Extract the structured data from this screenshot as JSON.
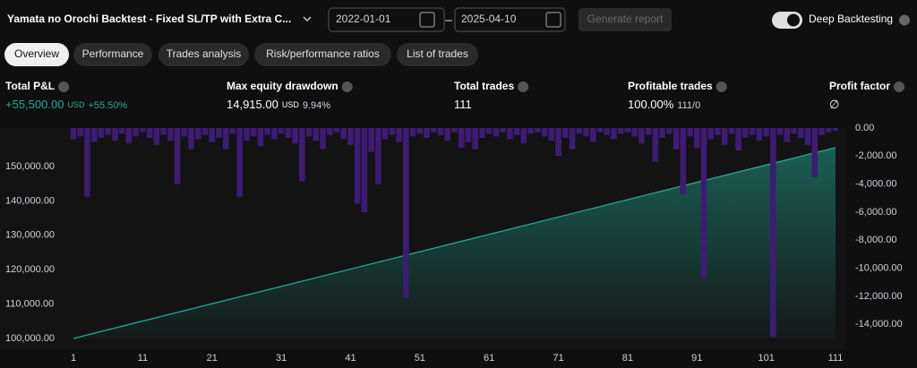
{
  "header": {
    "title": "Yamata no Orochi Backtest - Fixed SL/TP with Extra C...",
    "date_from": "2022-01-01",
    "date_to": "2025-04-10",
    "generate": "Generate report",
    "deep": "Deep Backtesting"
  },
  "tabs": [
    "Overview",
    "Performance",
    "Trades analysis",
    "Risk/performance ratios",
    "List of trades"
  ],
  "stats": [
    {
      "label": "Total P&L",
      "value": "+55,500.00",
      "unit": "USD",
      "extra": "+55.50%"
    },
    {
      "label": "Max equity drawdown",
      "value": "14,915.00",
      "unit": "USD",
      "extra": "9.94%"
    },
    {
      "label": "Total trades",
      "value": "111"
    },
    {
      "label": "Profitable trades",
      "value": "100.00%",
      "extra": "111/0"
    },
    {
      "label": "Profit factor",
      "value": "∅"
    }
  ],
  "chart_data": {
    "type": "line",
    "xlim": [
      1,
      111
    ],
    "xticks": [
      1,
      11,
      21,
      31,
      41,
      51,
      61,
      71,
      81,
      91,
      101,
      111
    ],
    "ylim": [
      100000,
      161200
    ],
    "yticks": [
      {
        "value": 100000,
        "label": "100,000.00"
      },
      {
        "value": 110000,
        "label": "110,000.00"
      },
      {
        "value": 120000,
        "label": "120,000.00"
      },
      {
        "value": 130000,
        "label": "130,000.00"
      },
      {
        "value": 140000,
        "label": "140,000.00"
      },
      {
        "value": 150000,
        "label": "150,000.00"
      }
    ],
    "y2lim": [
      -15000,
      0
    ],
    "y2ticks": [
      {
        "value": 0,
        "label": "0.00"
      },
      {
        "value": -2000,
        "label": "-2,000.00"
      },
      {
        "value": -4000,
        "label": "-4,000.00"
      },
      {
        "value": -6000,
        "label": "-6,000.00"
      },
      {
        "value": -8000,
        "label": "-8,000.00"
      },
      {
        "value": -10000,
        "label": "-10,000.00"
      },
      {
        "value": -12000,
        "label": "-12,000.00"
      },
      {
        "value": -14000,
        "label": "-14,000.00"
      }
    ],
    "series": [
      {
        "type": "line",
        "color": "#22ab94",
        "x": [
          1,
          111
        ],
        "values": [
          100000,
          155500
        ]
      },
      {
        "type": "bar",
        "axis": "y2",
        "color": "#3d1c73",
        "x": [
          1,
          2,
          3,
          4,
          5,
          6,
          7,
          8,
          9,
          10,
          11,
          12,
          13,
          14,
          15,
          16,
          17,
          18,
          19,
          20,
          21,
          22,
          23,
          24,
          25,
          26,
          27,
          28,
          29,
          30,
          31,
          32,
          33,
          34,
          35,
          36,
          37,
          38,
          39,
          40,
          41,
          42,
          43,
          44,
          45,
          46,
          47,
          48,
          49,
          50,
          51,
          52,
          53,
          54,
          55,
          56,
          57,
          58,
          59,
          60,
          61,
          62,
          63,
          64,
          65,
          66,
          67,
          68,
          69,
          70,
          71,
          72,
          73,
          74,
          75,
          76,
          77,
          78,
          79,
          80,
          81,
          82,
          83,
          84,
          85,
          86,
          87,
          88,
          89,
          90,
          91,
          92,
          93,
          94,
          95,
          96,
          97,
          98,
          99,
          100,
          101,
          102,
          103,
          104,
          105,
          106,
          107,
          108,
          109,
          110,
          111
        ],
        "values": [
          -800,
          -600,
          -4900,
          -1000,
          -700,
          -500,
          -900,
          -400,
          -1100,
          -600,
          -300,
          -700,
          -1200,
          -500,
          -900,
          -4000,
          -600,
          -1500,
          -800,
          -500,
          -1000,
          -700,
          -1500,
          -400,
          -4900,
          -900,
          -600,
          -1300,
          -500,
          -800,
          -400,
          -700,
          -1100,
          -3800,
          -600,
          -900,
          -1500,
          -500,
          -300,
          -800,
          -1200,
          -5400,
          -6000,
          -1700,
          -4000,
          -800,
          -500,
          -1000,
          -12100,
          -600,
          -400,
          -700,
          -300,
          -500,
          -900,
          -300,
          -1400,
          -1000,
          -1500,
          -700,
          -400,
          -600,
          -300,
          -800,
          -500,
          -1100,
          -400,
          -300,
          -600,
          -900,
          -2000,
          -700,
          -1500,
          -400,
          -600,
          -1000,
          -300,
          -500,
          -800,
          -400,
          -300,
          -600,
          -1100,
          -500,
          -2400,
          -700,
          -400,
          -1500,
          -4700,
          -600,
          -1400,
          -10700,
          -800,
          -500,
          -1200,
          -400,
          -1600,
          -700,
          -500,
          -900,
          -600,
          -14900,
          -500,
          -1000,
          -400,
          -700,
          -1200,
          -3500,
          -500,
          -300,
          -200
        ]
      }
    ]
  }
}
